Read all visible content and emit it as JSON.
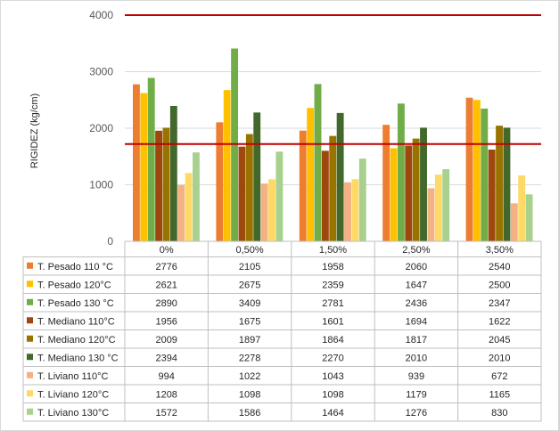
{
  "chart_data": {
    "type": "bar",
    "title": "",
    "xlabel": "",
    "ylabel": "RIGIDEZ (kg/cm)",
    "ylim": [
      0,
      4000
    ],
    "yticks": [
      0,
      1000,
      2000,
      3000,
      4000
    ],
    "grid": true,
    "categories": [
      "0%",
      "0,50%",
      "1,50%",
      "2,50%",
      "3,50%"
    ],
    "reference_lines": [
      4000,
      1720
    ],
    "series": [
      {
        "name": "T. Pesado 110 °C",
        "color": "#ED7D31",
        "values": [
          2776,
          2105,
          1958,
          2060,
          2540
        ]
      },
      {
        "name": "T. Pesado 120°C",
        "color": "#FFC000",
        "values": [
          2621,
          2675,
          2359,
          1647,
          2500
        ]
      },
      {
        "name": "T. Pesado 130 °C",
        "color": "#70AD47",
        "values": [
          2890,
          3409,
          2781,
          2436,
          2347
        ]
      },
      {
        "name": "T. Mediano 110°C",
        "color": "#9E480E",
        "values": [
          1956,
          1675,
          1601,
          1694,
          1622
        ]
      },
      {
        "name": "T. Mediano 120°C",
        "color": "#997300",
        "values": [
          2009,
          1897,
          1864,
          1817,
          2045
        ]
      },
      {
        "name": "T. Mediano 130 °C",
        "color": "#43682B",
        "values": [
          2394,
          2278,
          2270,
          2010,
          2010
        ]
      },
      {
        "name": "T. Liviano 110°C",
        "color": "#F4B183",
        "values": [
          994,
          1022,
          1043,
          939,
          672
        ]
      },
      {
        "name": "T. Liviano 120°C",
        "color": "#FFD966",
        "values": [
          1208,
          1098,
          1098,
          1179,
          1165
        ]
      },
      {
        "name": "T. Liviano 130°C",
        "color": "#A9D18E",
        "values": [
          1572,
          1586,
          1464,
          1276,
          830
        ]
      }
    ]
  },
  "colors": {
    "reference_line": "#C00000",
    "grid": "#d9d9d9",
    "table_border": "#bfbfbf"
  }
}
